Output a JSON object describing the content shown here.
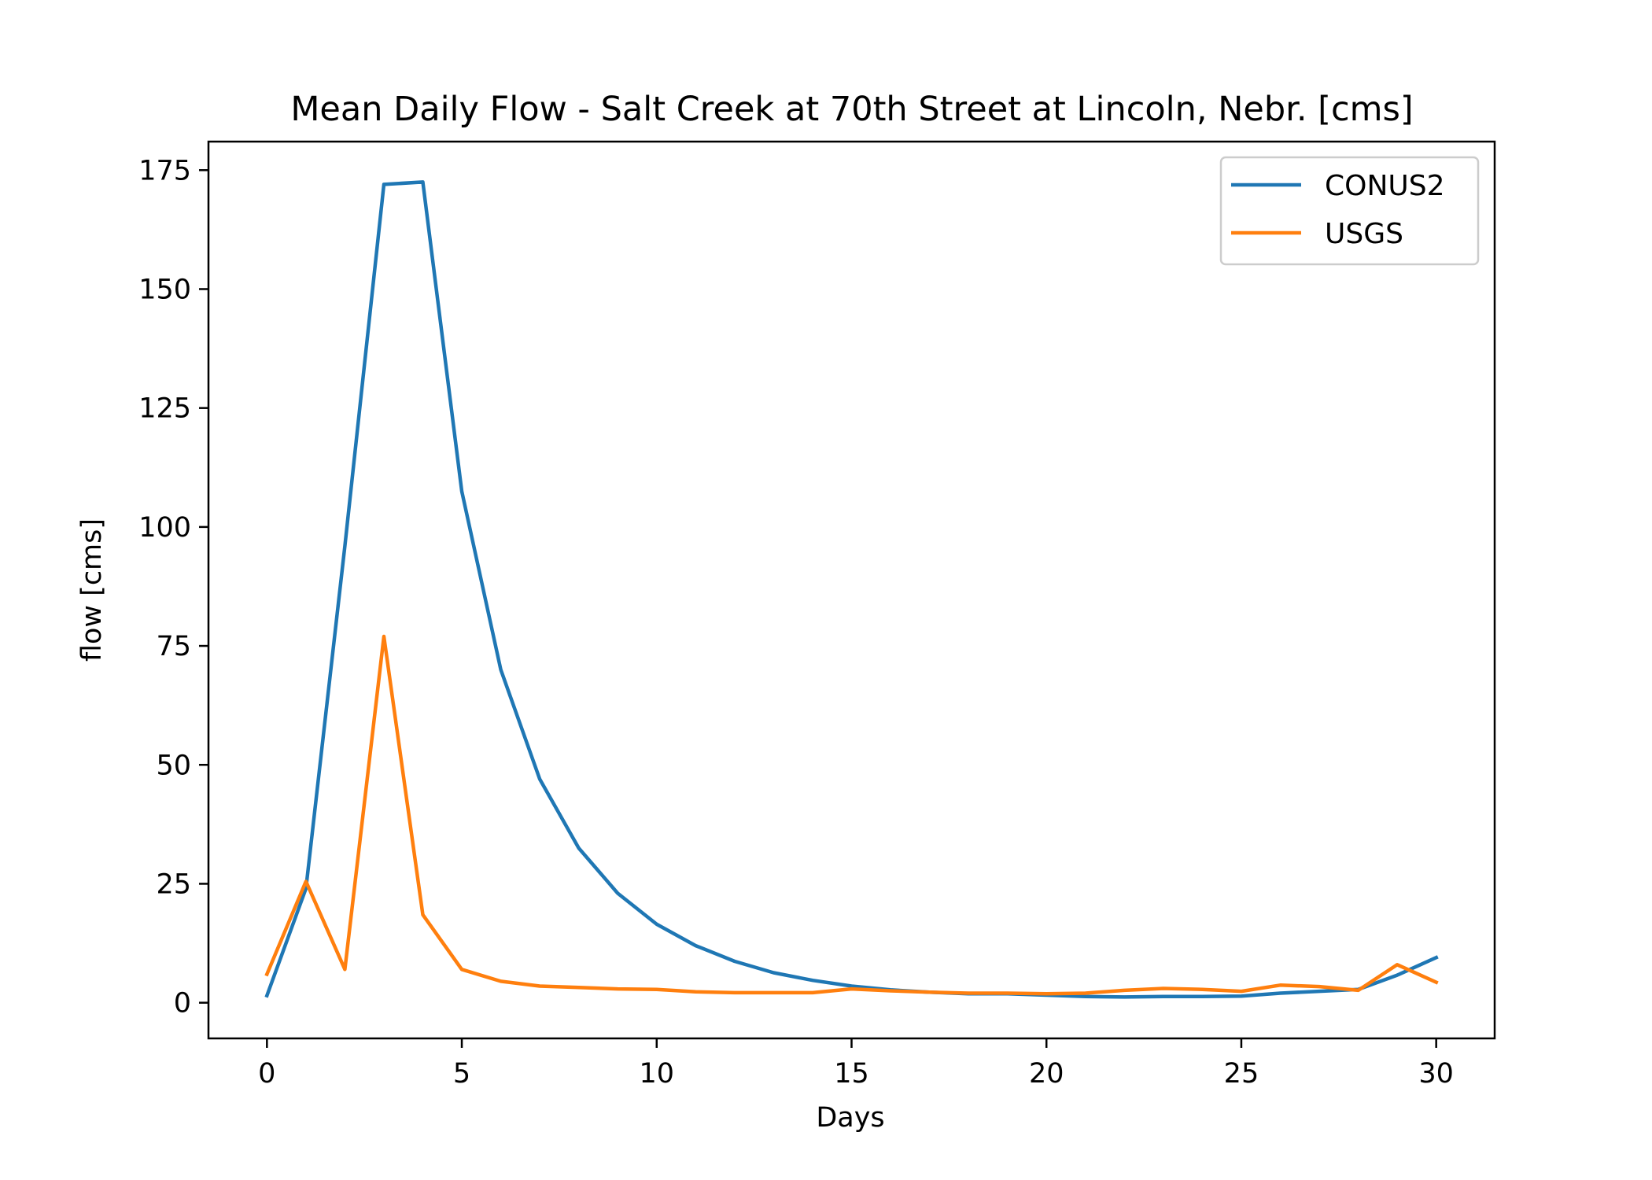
{
  "chart_data": {
    "type": "line",
    "title": "Mean Daily Flow - Salt Creek at 70th Street at Lincoln, Nebr. [cms]",
    "xlabel": "Days",
    "ylabel": "flow [cms]",
    "xlim": [
      -1.5,
      31.5
    ],
    "ylim": [
      -7.5,
      181
    ],
    "xticks": [
      0,
      5,
      10,
      15,
      20,
      25,
      30
    ],
    "yticks": [
      0,
      25,
      50,
      75,
      100,
      125,
      150,
      175
    ],
    "grid": false,
    "legend": "top-right",
    "x": [
      0,
      1,
      2,
      3,
      4,
      5,
      6,
      7,
      8,
      9,
      10,
      11,
      12,
      13,
      14,
      15,
      16,
      17,
      18,
      19,
      20,
      21,
      22,
      23,
      24,
      25,
      26,
      27,
      28,
      29,
      30
    ],
    "series": [
      {
        "name": "CONUS2",
        "color": "#1f77b4",
        "values": [
          1.5,
          24,
          96,
          172,
          172.5,
          107.5,
          70,
          47,
          32.5,
          23,
          16.5,
          12,
          8.7,
          6.3,
          4.7,
          3.5,
          2.7,
          2.2,
          1.9,
          1.9,
          1.6,
          1.3,
          1.2,
          1.3,
          1.3,
          1.4,
          2.0,
          2.4,
          2.8,
          5.8,
          9.5
        ]
      },
      {
        "name": "USGS",
        "color": "#ff7f0e",
        "values": [
          6,
          25.5,
          7,
          77,
          18.5,
          7,
          4.5,
          3.5,
          3.2,
          2.9,
          2.8,
          2.3,
          2.1,
          2.1,
          2.1,
          2.9,
          2.5,
          2.2,
          2.0,
          2.0,
          1.9,
          2.0,
          2.6,
          3.0,
          2.8,
          2.4,
          3.7,
          3.4,
          2.6,
          8,
          4.3
        ]
      }
    ]
  }
}
